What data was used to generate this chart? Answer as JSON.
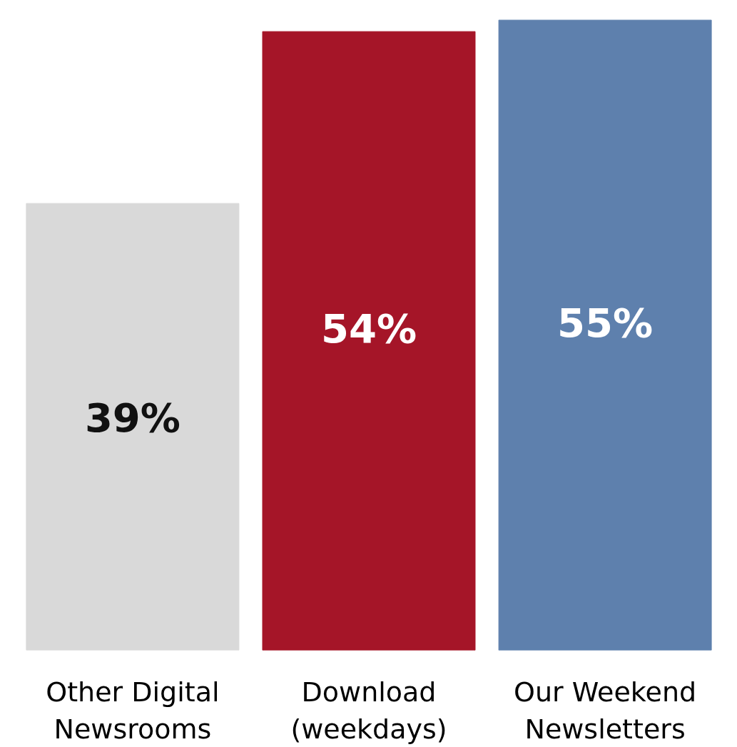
{
  "chart_data": {
    "type": "bar",
    "value_labels": [
      "39%",
      "54%",
      "55%"
    ],
    "categories": [
      "Other Digital Newsrooms",
      "Download (weekdays)",
      "Our Weekend Newsletters"
    ],
    "values": [
      39,
      54,
      55
    ],
    "colors": [
      "#d9d9d9",
      "#a51528",
      "#5e80ad"
    ]
  }
}
